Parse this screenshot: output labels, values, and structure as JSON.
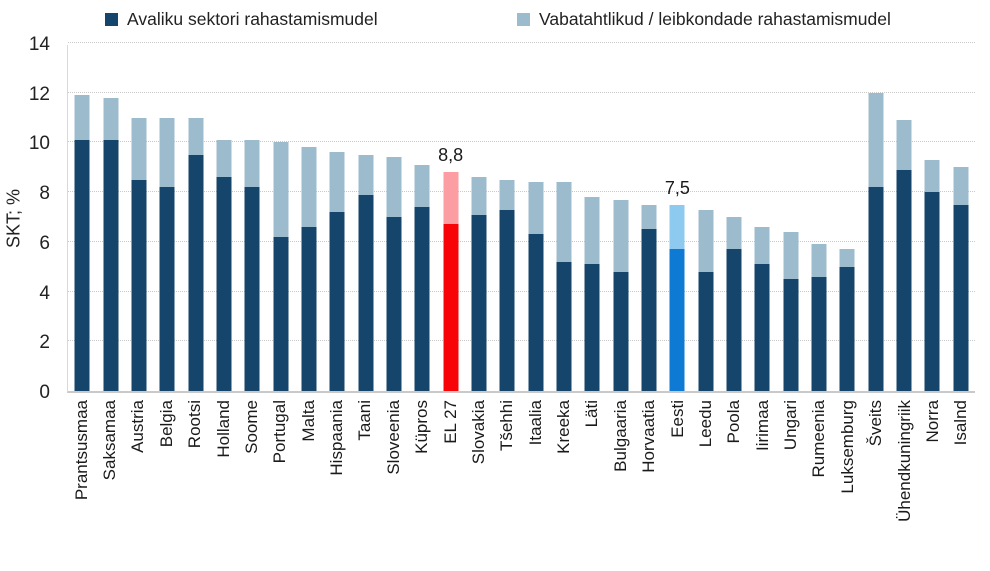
{
  "legend": {
    "items": [
      {
        "label": "Avaliku sektori rahastamismudel",
        "color": "#15456A"
      },
      {
        "label": "Vabatahtlikud / leibkondade rahastamismudel",
        "color": "#9CBBCC"
      }
    ]
  },
  "chart_data": {
    "type": "bar",
    "stacked": true,
    "title": "",
    "xlabel": "",
    "ylabel": "SKT; %",
    "ylim": [
      0,
      14
    ],
    "yticks": [
      0,
      2,
      4,
      6,
      8,
      10,
      12,
      14
    ],
    "grid": "horizontal-dotted",
    "legend_position": "top",
    "categories": [
      "Prantsusmaa",
      "Saksamaa",
      "Austria",
      "Belgia",
      "Rootsi",
      "Holland",
      "Soome",
      "Portugal",
      "Malta",
      "Hispaania",
      "Taani",
      "Sloveenia",
      "Küpros",
      "EL 27",
      "Slovakia",
      "Tšehhi",
      "Itaalia",
      "Kreeka",
      "Läti",
      "Bulgaaria",
      "Horvaatia",
      "Eesti",
      "Leedu",
      "Poola",
      "Iirimaa",
      "Ungari",
      "Rumeenia",
      "Luksemburg",
      "Šveits",
      "Ühendkuningriik",
      "Norra",
      "Isalnd"
    ],
    "series": [
      {
        "name": "Avaliku sektori rahastamismudel",
        "values": [
          10.1,
          10.1,
          8.5,
          8.2,
          9.5,
          8.6,
          8.2,
          6.2,
          6.6,
          7.2,
          7.9,
          7.0,
          7.4,
          6.7,
          7.1,
          7.3,
          6.3,
          5.2,
          5.1,
          4.8,
          6.5,
          5.7,
          4.8,
          5.7,
          5.1,
          4.5,
          4.6,
          5.0,
          8.2,
          8.9,
          8.0,
          7.5
        ]
      },
      {
        "name": "Vabatahtlikud / leibkondade rahastamismudel",
        "values": [
          1.8,
          1.7,
          2.5,
          2.8,
          1.5,
          1.5,
          1.9,
          3.8,
          3.2,
          2.4,
          1.6,
          2.4,
          1.7,
          2.1,
          1.5,
          1.2,
          2.1,
          3.2,
          2.7,
          2.9,
          1.0,
          1.8,
          2.5,
          1.3,
          1.5,
          1.9,
          1.3,
          0.7,
          3.8,
          2.0,
          1.3,
          1.5
        ]
      }
    ],
    "totals": [
      11.9,
      11.8,
      11.0,
      11.0,
      11.0,
      10.1,
      10.1,
      10.0,
      9.8,
      9.6,
      9.5,
      9.4,
      9.1,
      8.8,
      8.6,
      8.5,
      8.4,
      8.4,
      7.8,
      7.7,
      7.5,
      7.5,
      7.3,
      7.0,
      6.6,
      6.4,
      5.9,
      5.7,
      12.0,
      10.9,
      9.3,
      9.0
    ],
    "annotations": [
      {
        "category": "EL 27",
        "text": "8,8"
      },
      {
        "category": "Eesti",
        "text": "7,5"
      }
    ],
    "highlights": [
      {
        "category": "EL 27",
        "bottom_color": "#F80408",
        "top_color": "#FB9DA3"
      },
      {
        "category": "Eesti",
        "bottom_color": "#0E7AD3",
        "top_color": "#8EC9EF"
      }
    ],
    "default_colors": {
      "bottom": "#15456A",
      "top": "#9CBBCC"
    }
  },
  "axis": {
    "y_label": "SKT; %"
  }
}
